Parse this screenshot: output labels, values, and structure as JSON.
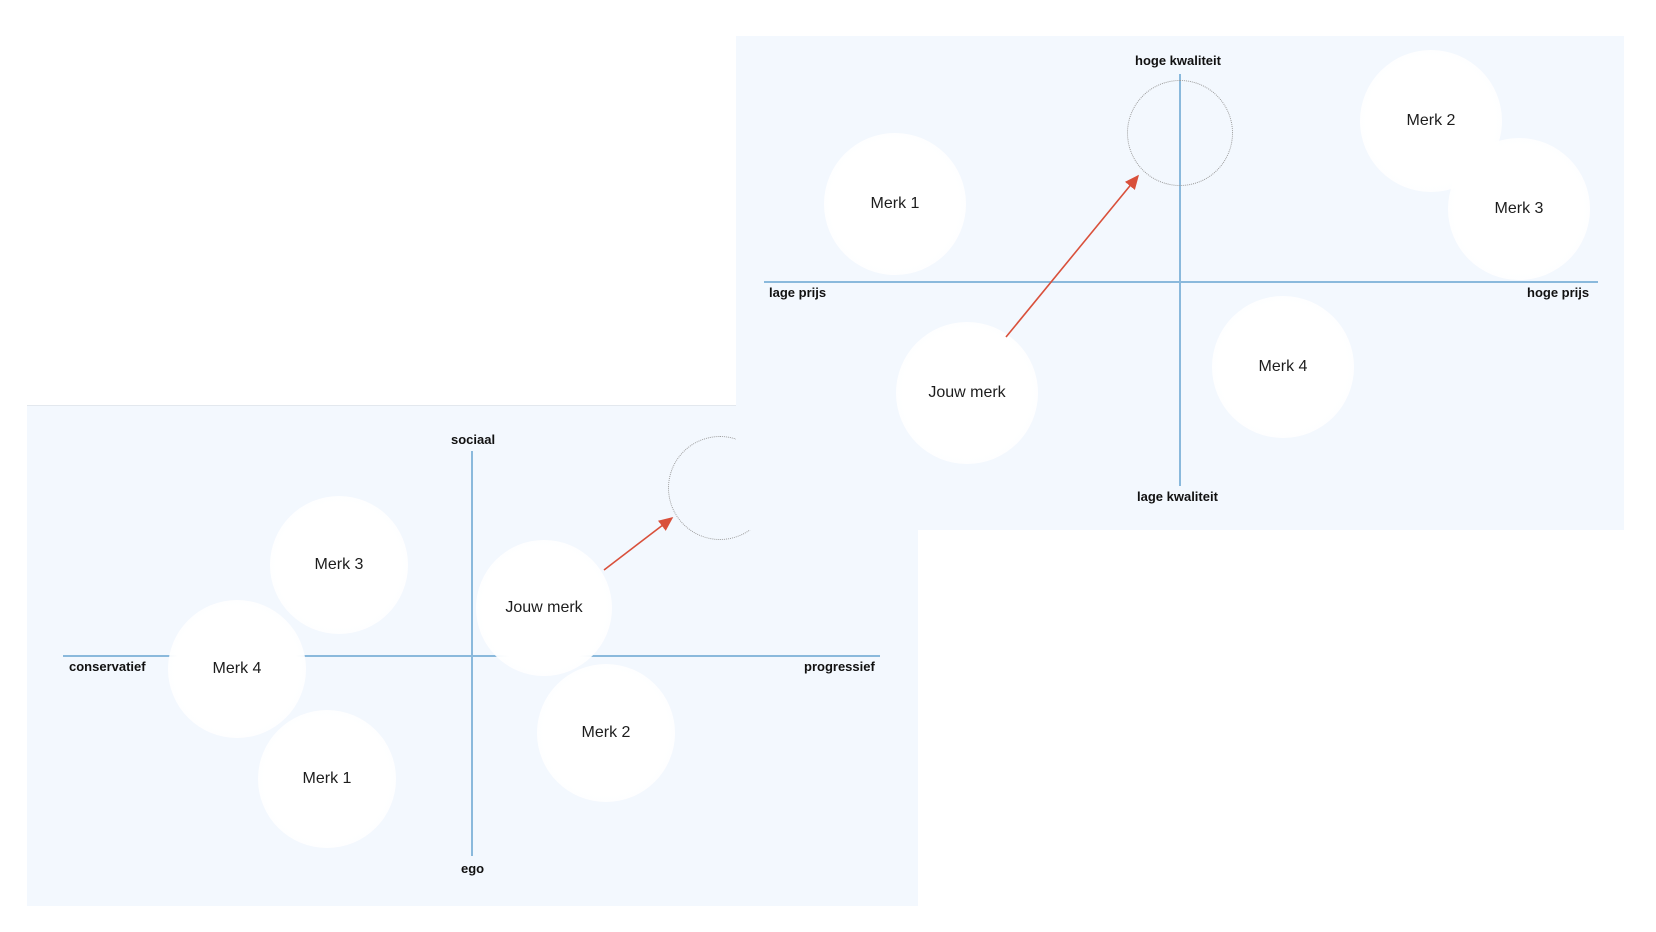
{
  "maps": {
    "left": {
      "axes": {
        "top": "sociaal",
        "bottom": "ego",
        "left": "conservatief",
        "right": "progressief"
      },
      "brands": {
        "merk3": "Merk 3",
        "merk4": "Merk 4",
        "merk1": "Merk 1",
        "jouw": "Jouw merk",
        "merk2": "Merk 2"
      }
    },
    "right": {
      "axes": {
        "top": "hoge kwaliteit",
        "bottom": "lage kwaliteit",
        "left": "lage prijs",
        "right": "hoge prijs"
      },
      "brands": {
        "merk1": "Merk 1",
        "merk2": "Merk 2",
        "merk3": "Merk 3",
        "merk4": "Merk 4",
        "jouw": "Jouw merk"
      }
    }
  },
  "colors": {
    "panel_bg": "#f3f8fe",
    "axis": "#8ab9dc",
    "arrow": "#d9503b",
    "target_border": "#9a9a9a"
  }
}
